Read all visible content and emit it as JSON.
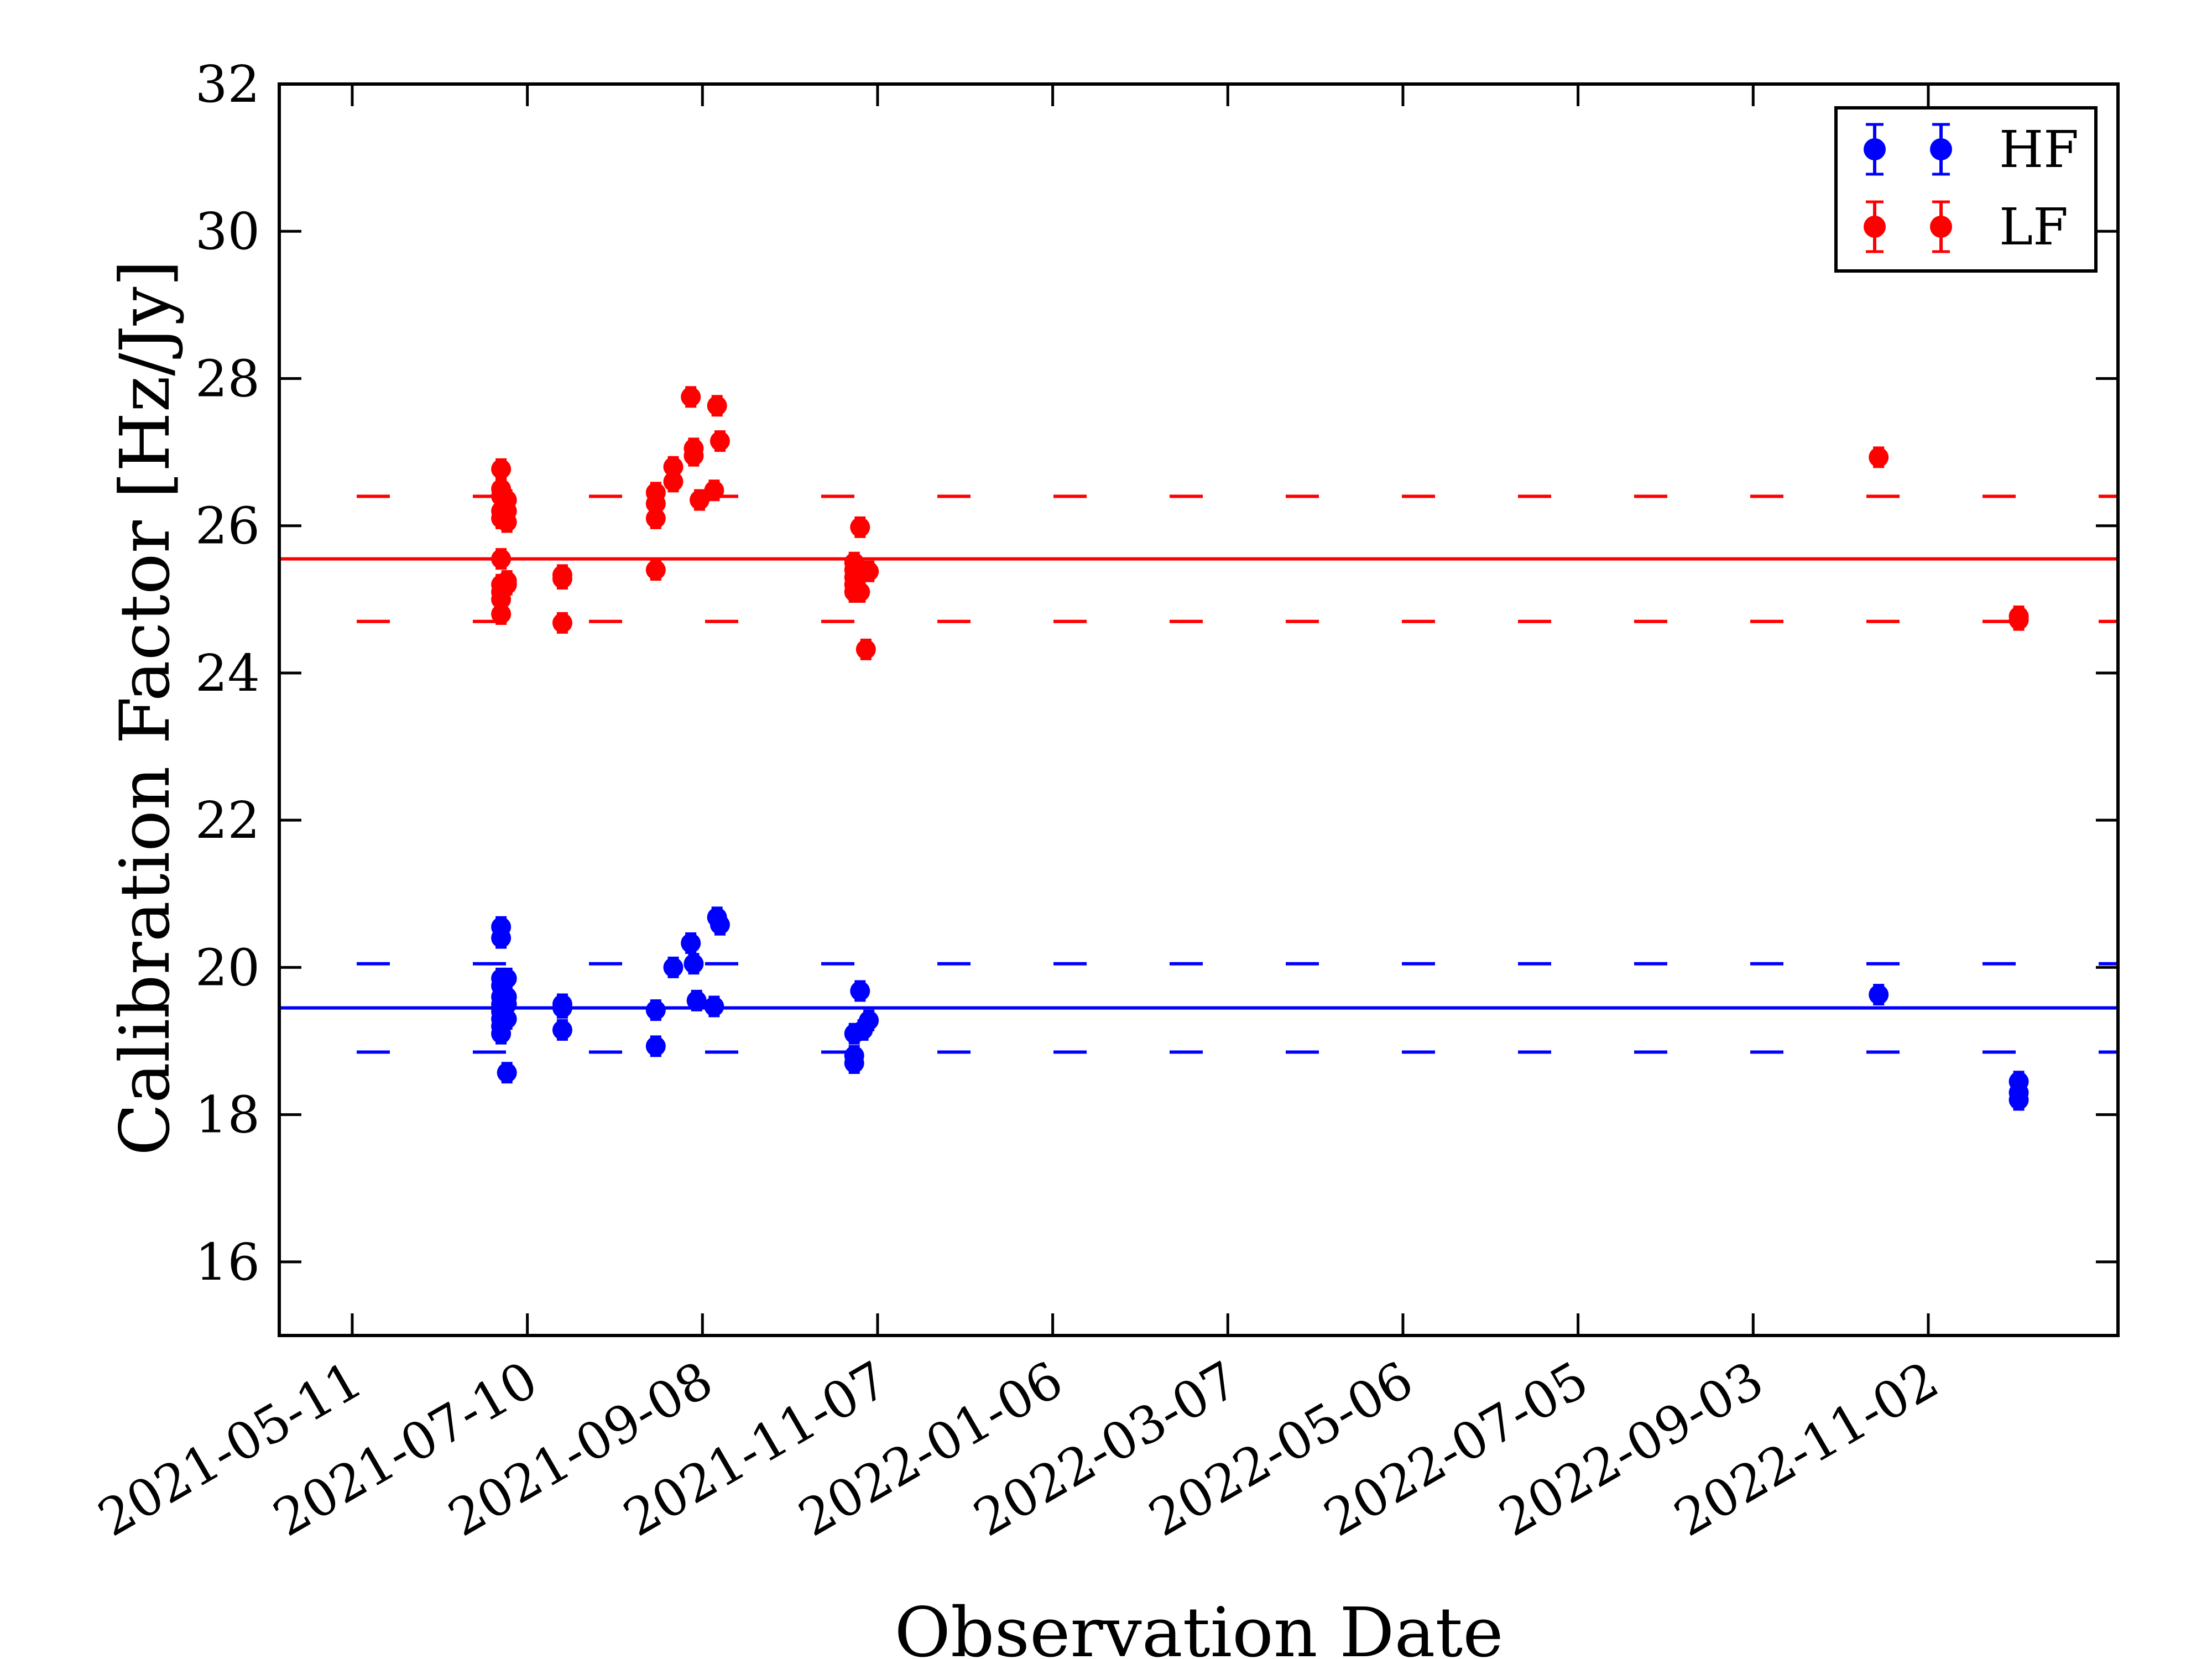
{
  "chart_data": {
    "type": "scatter",
    "title": "",
    "xlabel": "Observation Date",
    "ylabel": "Calibration Factor [Hz/Jy]",
    "ylim": [
      15,
      32
    ],
    "y_ticks": [
      16,
      18,
      20,
      22,
      24,
      26,
      28,
      30,
      32
    ],
    "y_tick_labels": [
      "16",
      "18",
      "20",
      "22",
      "24",
      "26",
      "28",
      "30",
      "32"
    ],
    "xlim": [
      "2021-04-16",
      "2023-01-06"
    ],
    "x_ticks": [
      "2021-05-11",
      "2021-07-10",
      "2021-09-08",
      "2021-11-07",
      "2022-01-06",
      "2022-03-07",
      "2022-05-06",
      "2022-07-05",
      "2022-09-03",
      "2022-11-02"
    ],
    "grid": false,
    "legend_position": "top-right",
    "reference_lines": [
      {
        "series": "HF",
        "kind": "mean",
        "y": 19.45,
        "style": "solid",
        "color": "#0000ff"
      },
      {
        "series": "HF",
        "kind": "lower",
        "y": 18.85,
        "style": "dashed",
        "color": "#0000ff"
      },
      {
        "series": "HF",
        "kind": "upper",
        "y": 20.05,
        "style": "dashed",
        "color": "#0000ff"
      },
      {
        "series": "LF",
        "kind": "mean",
        "y": 25.55,
        "style": "solid",
        "color": "#ff0000"
      },
      {
        "series": "LF",
        "kind": "lower",
        "y": 24.7,
        "style": "dashed",
        "color": "#ff0000"
      },
      {
        "series": "LF",
        "kind": "upper",
        "y": 26.4,
        "style": "dashed",
        "color": "#ff0000"
      }
    ],
    "series": [
      {
        "name": "HF",
        "color": "#0000ff",
        "points": [
          {
            "x": "2021-07-01",
            "y": 20.55
          },
          {
            "x": "2021-07-01",
            "y": 20.4
          },
          {
            "x": "2021-07-01",
            "y": 19.85
          },
          {
            "x": "2021-07-01",
            "y": 19.75
          },
          {
            "x": "2021-07-01",
            "y": 19.6
          },
          {
            "x": "2021-07-01",
            "y": 19.5
          },
          {
            "x": "2021-07-01",
            "y": 19.4
          },
          {
            "x": "2021-07-01",
            "y": 19.3
          },
          {
            "x": "2021-07-01",
            "y": 19.2
          },
          {
            "x": "2021-07-01",
            "y": 19.1
          },
          {
            "x": "2021-07-03",
            "y": 19.85
          },
          {
            "x": "2021-07-03",
            "y": 19.6
          },
          {
            "x": "2021-07-03",
            "y": 19.5
          },
          {
            "x": "2021-07-03",
            "y": 19.3
          },
          {
            "x": "2021-07-03",
            "y": 18.57
          },
          {
            "x": "2021-07-22",
            "y": 19.5
          },
          {
            "x": "2021-07-22",
            "y": 19.45
          },
          {
            "x": "2021-07-22",
            "y": 19.15
          },
          {
            "x": "2021-08-23",
            "y": 19.42
          },
          {
            "x": "2021-08-23",
            "y": 18.93
          },
          {
            "x": "2021-08-29",
            "y": 20.0
          },
          {
            "x": "2021-09-04",
            "y": 20.33
          },
          {
            "x": "2021-09-05",
            "y": 20.05
          },
          {
            "x": "2021-09-06",
            "y": 19.55
          },
          {
            "x": "2021-09-12",
            "y": 19.47
          },
          {
            "x": "2021-09-13",
            "y": 20.68
          },
          {
            "x": "2021-09-14",
            "y": 20.58
          },
          {
            "x": "2021-10-30",
            "y": 19.1
          },
          {
            "x": "2021-10-30",
            "y": 18.8
          },
          {
            "x": "2021-10-30",
            "y": 18.7
          },
          {
            "x": "2021-11-01",
            "y": 19.68
          },
          {
            "x": "2021-11-02",
            "y": 19.15
          },
          {
            "x": "2021-11-04",
            "y": 19.28
          },
          {
            "x": "2022-10-16",
            "y": 19.63
          },
          {
            "x": "2022-12-03",
            "y": 18.45
          },
          {
            "x": "2022-12-03",
            "y": 18.3
          },
          {
            "x": "2022-12-03",
            "y": 18.2
          }
        ]
      },
      {
        "name": "LF",
        "color": "#ff0000",
        "points": [
          {
            "x": "2021-07-01",
            "y": 26.77
          },
          {
            "x": "2021-07-01",
            "y": 26.5
          },
          {
            "x": "2021-07-01",
            "y": 26.4
          },
          {
            "x": "2021-07-01",
            "y": 26.2
          },
          {
            "x": "2021-07-01",
            "y": 26.1
          },
          {
            "x": "2021-07-01",
            "y": 25.55
          },
          {
            "x": "2021-07-01",
            "y": 25.2
          },
          {
            "x": "2021-07-01",
            "y": 25.1
          },
          {
            "x": "2021-07-01",
            "y": 25.0
          },
          {
            "x": "2021-07-01",
            "y": 24.8
          },
          {
            "x": "2021-07-03",
            "y": 26.35
          },
          {
            "x": "2021-07-03",
            "y": 26.2
          },
          {
            "x": "2021-07-03",
            "y": 26.05
          },
          {
            "x": "2021-07-03",
            "y": 25.25
          },
          {
            "x": "2021-07-03",
            "y": 25.2
          },
          {
            "x": "2021-07-22",
            "y": 25.33
          },
          {
            "x": "2021-07-22",
            "y": 25.28
          },
          {
            "x": "2021-07-22",
            "y": 24.68
          },
          {
            "x": "2021-08-23",
            "y": 26.45
          },
          {
            "x": "2021-08-23",
            "y": 26.3
          },
          {
            "x": "2021-08-23",
            "y": 26.1
          },
          {
            "x": "2021-08-23",
            "y": 25.4
          },
          {
            "x": "2021-08-29",
            "y": 26.8
          },
          {
            "x": "2021-08-29",
            "y": 26.6
          },
          {
            "x": "2021-09-04",
            "y": 27.75
          },
          {
            "x": "2021-09-05",
            "y": 27.05
          },
          {
            "x": "2021-09-05",
            "y": 26.95
          },
          {
            "x": "2021-09-07",
            "y": 26.35
          },
          {
            "x": "2021-09-12",
            "y": 26.48
          },
          {
            "x": "2021-09-13",
            "y": 27.63
          },
          {
            "x": "2021-09-14",
            "y": 27.15
          },
          {
            "x": "2021-10-30",
            "y": 25.5
          },
          {
            "x": "2021-10-30",
            "y": 25.4
          },
          {
            "x": "2021-10-30",
            "y": 25.3
          },
          {
            "x": "2021-10-30",
            "y": 25.2
          },
          {
            "x": "2021-10-30",
            "y": 25.1
          },
          {
            "x": "2021-11-01",
            "y": 25.98
          },
          {
            "x": "2021-11-01",
            "y": 25.1
          },
          {
            "x": "2021-11-03",
            "y": 24.32
          },
          {
            "x": "2021-11-04",
            "y": 25.38
          },
          {
            "x": "2022-10-16",
            "y": 26.93
          },
          {
            "x": "2022-12-03",
            "y": 24.77
          },
          {
            "x": "2022-12-03",
            "y": 24.72
          }
        ]
      }
    ]
  }
}
